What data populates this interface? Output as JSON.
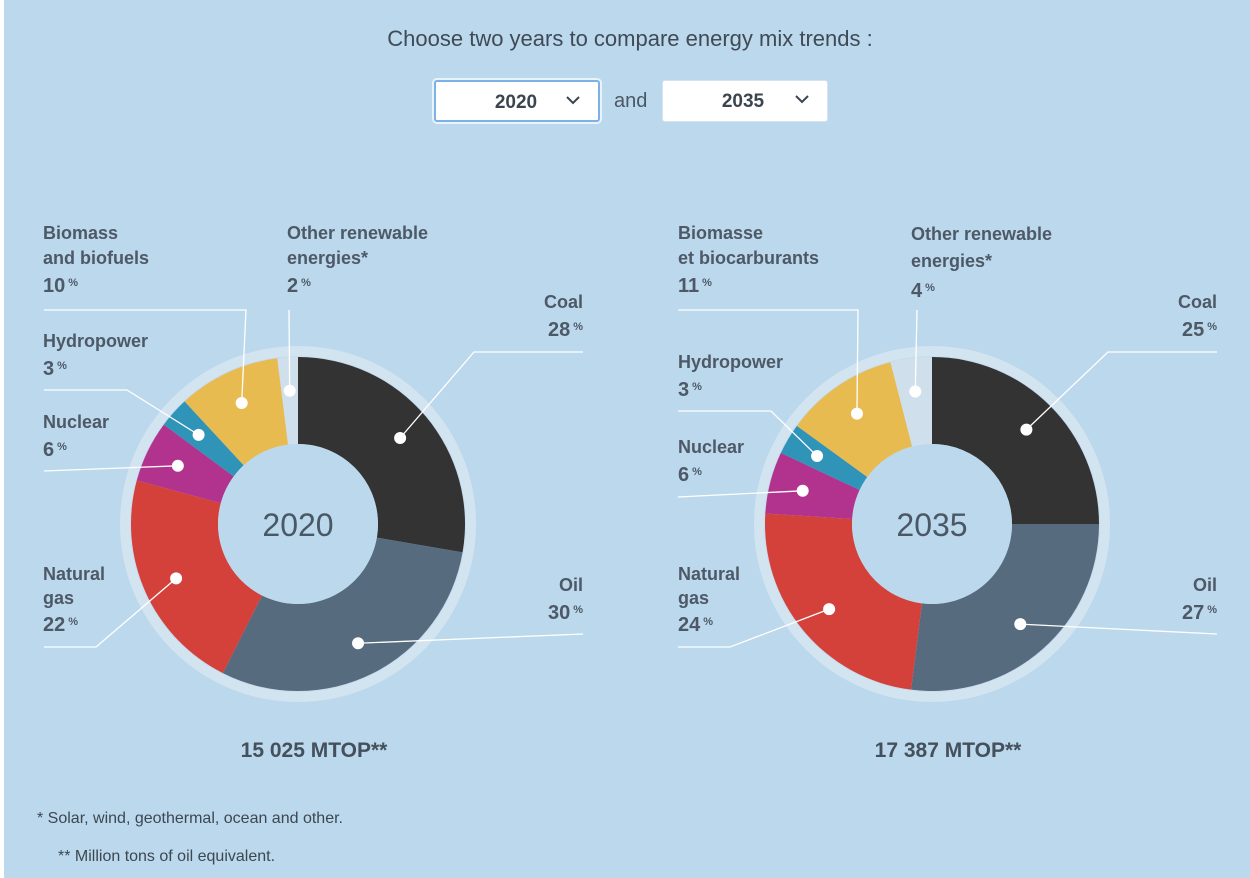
{
  "prompt": "Choose two years to compare energy mix trends :",
  "selectors": {
    "first_year": "2020",
    "and_label": "and",
    "second_year": "2035"
  },
  "chart_data": [
    {
      "type": "pie",
      "center_label": "2020",
      "total": "15 025 MTOP**",
      "slices": [
        {
          "name": "Coal",
          "value": 28,
          "color": "#333333"
        },
        {
          "name": "Oil",
          "value": 30,
          "color": "#566b7e"
        },
        {
          "name": "Natural gas",
          "value": 22,
          "color": "#d4413b"
        },
        {
          "name": "Nuclear",
          "value": 6,
          "color": "#b2338e"
        },
        {
          "name": "Hydropower",
          "value": 3,
          "color": "#2f94b7"
        },
        {
          "name": "Biomass and biofuels",
          "value": 10,
          "color": "#e8bb50"
        },
        {
          "name": "Other renewable energies*",
          "value": 2,
          "color": "#cfdfeb"
        }
      ],
      "labels": {
        "coal": {
          "name": "Coal",
          "pct": "28"
        },
        "oil": {
          "name": "Oil",
          "pct": "30"
        },
        "gas": {
          "line1": "Natural",
          "line2": "gas",
          "pct": "22"
        },
        "nuclear": {
          "name": "Nuclear",
          "pct": "6"
        },
        "hydro": {
          "name": "Hydropower",
          "pct": "3"
        },
        "biomass": {
          "line1": "Biomass",
          "line2": "and biofuels",
          "pct": "10"
        },
        "other": {
          "line1": "Other renewable",
          "line2": "energies*",
          "pct": "2"
        }
      }
    },
    {
      "type": "pie",
      "center_label": "2035",
      "total": "17 387 MTOP**",
      "slices": [
        {
          "name": "Coal",
          "value": 25,
          "color": "#333333"
        },
        {
          "name": "Oil",
          "value": 27,
          "color": "#566b7e"
        },
        {
          "name": "Natural gas",
          "value": 24,
          "color": "#d4413b"
        },
        {
          "name": "Nuclear",
          "value": 6,
          "color": "#b2338e"
        },
        {
          "name": "Hydropower",
          "value": 3,
          "color": "#2f94b7"
        },
        {
          "name": "Biomasse et biocarburants",
          "value": 11,
          "color": "#e8bb50"
        },
        {
          "name": "Other renewable energies*",
          "value": 4,
          "color": "#cfdfeb"
        }
      ],
      "labels": {
        "coal": {
          "name": "Coal",
          "pct": "25"
        },
        "oil": {
          "name": "Oil",
          "pct": "27"
        },
        "gas": {
          "line1": "Natural",
          "line2": "gas",
          "pct": "24"
        },
        "nuclear": {
          "name": "Nuclear",
          "pct": "6"
        },
        "hydro": {
          "name": "Hydropower",
          "pct": "3"
        },
        "biomass": {
          "line1": "Biomasse",
          "line2": "et biocarburants",
          "pct": "11"
        },
        "other": {
          "line1": "Other renewable",
          "line2": "energies*",
          "pct": "4"
        }
      }
    }
  ],
  "percent_sign": "%",
  "footnotes": {
    "note1": "* Solar, wind, geothermal, ocean and other.",
    "note2": "** Million tons of oil equivalent."
  }
}
